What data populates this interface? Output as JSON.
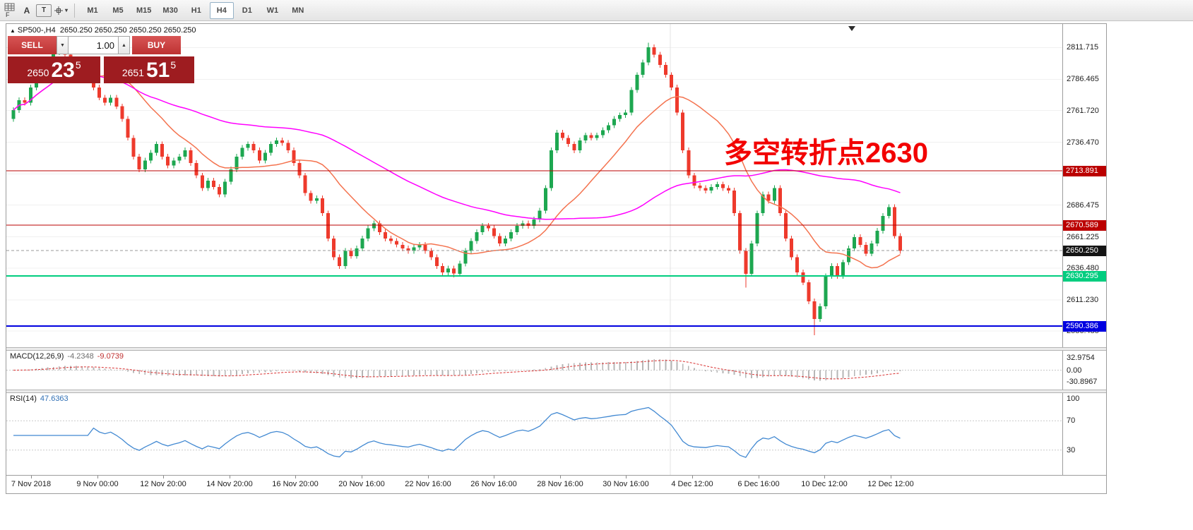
{
  "toolbar": {
    "icon_caption": "F",
    "text_tool": "A",
    "label_tool": "T",
    "timeframes": [
      "M1",
      "M5",
      "M15",
      "M30",
      "H1",
      "H4",
      "D1",
      "W1",
      "MN"
    ],
    "active_timeframe": "H4"
  },
  "header": {
    "symbol": "SP500-,H4",
    "ohlc": "2650.250 2650.250 2650.250 2650.250"
  },
  "trade_panel": {
    "sell": "SELL",
    "buy": "BUY",
    "volume": "1.00",
    "bid": {
      "prefix": "2650",
      "big": "23",
      "pip": "5"
    },
    "ask": {
      "prefix": "2651",
      "big": "51",
      "pip": "5"
    }
  },
  "annotation": {
    "text": "多空转折点2630",
    "color": "#f20000"
  },
  "price_axis": {
    "ticks": [
      "2811.715",
      "2786.465",
      "2761.720",
      "2736.470",
      "2711.225",
      "2686.475",
      "2661.225",
      "2636.480",
      "2611.230",
      "2586.485"
    ]
  },
  "levels": [
    {
      "label": "2713.891",
      "price": 2713.891,
      "line": "#bb0000",
      "width": 1,
      "dashed": false,
      "bg": "#bb0000"
    },
    {
      "label": "2670.589",
      "price": 2670.589,
      "line": "#bb0000",
      "width": 1,
      "dashed": false,
      "bg": "#bb0000"
    },
    {
      "label": "2650.250",
      "price": 2650.25,
      "line": "#9a9a9a",
      "width": 1,
      "dashed": true,
      "bg": "#141414"
    },
    {
      "label": "2630.295",
      "price": 2630.295,
      "line": "#00cd7f",
      "width": 2,
      "dashed": false,
      "bg": "#00cd7f"
    },
    {
      "label": "2590.386",
      "price": 2590.386,
      "line": "#0000e0",
      "width": 2,
      "dashed": false,
      "bg": "#0000e0"
    }
  ],
  "macd": {
    "name": "MACD(12,26,9)",
    "main_value": "-4.2348",
    "signal_value": "-9.0739",
    "axis": [
      "32.9754",
      "0.00",
      "-30.8967"
    ],
    "fast": 12,
    "slow": 26,
    "signal": 9,
    "hist_color": "#b6b6b6",
    "signal_color": "#d93030"
  },
  "rsi": {
    "name": "RSI(14)",
    "value": "47.6363",
    "axis": [
      "100",
      "70",
      "30"
    ],
    "period": 14,
    "levels": [
      70,
      30
    ],
    "color": "#4289d2"
  },
  "time_axis": [
    "7 Nov 2018",
    "9 Nov 00:00",
    "12 Nov 20:00",
    "14 Nov 20:00",
    "16 Nov 20:00",
    "20 Nov 16:00",
    "22 Nov 16:00",
    "26 Nov 16:00",
    "28 Nov 16:00",
    "30 Nov 16:00",
    "4 Dec 12:00",
    "6 Dec 16:00",
    "10 Dec 12:00",
    "12 Dec 12:00"
  ],
  "chart_data": {
    "type": "candlestick",
    "symbol": "SP500-",
    "timeframe": "H4",
    "title": "SP500-,H4",
    "ylim": [
      2573.5,
      2830.5
    ],
    "current_price": 2650.25,
    "first_open": 2755,
    "up_color": "#1da750",
    "down_color": "#ee3a2c",
    "wick": 2.2,
    "closes": [
      2762,
      2770,
      2768,
      2780,
      2790,
      2795,
      2800,
      2808,
      2812,
      2806,
      2798,
      2800,
      2795,
      2788,
      2780,
      2772,
      2768,
      2772,
      2765,
      2755,
      2740,
      2725,
      2715,
      2722,
      2728,
      2735,
      2725,
      2718,
      2722,
      2725,
      2730,
      2720,
      2710,
      2700,
      2706,
      2701,
      2695,
      2705,
      2715,
      2725,
      2732,
      2735,
      2730,
      2722,
      2728,
      2735,
      2738,
      2736,
      2730,
      2720,
      2710,
      2696,
      2690,
      2692,
      2680,
      2660,
      2645,
      2638,
      2650,
      2646,
      2652,
      2660,
      2668,
      2672,
      2665,
      2660,
      2658,
      2655,
      2652,
      2650,
      2653,
      2655,
      2650,
      2645,
      2638,
      2633,
      2636,
      2632,
      2640,
      2650,
      2658,
      2665,
      2670,
      2668,
      2662,
      2656,
      2660,
      2665,
      2670,
      2672,
      2670,
      2675,
      2682,
      2700,
      2730,
      2744,
      2740,
      2735,
      2730,
      2738,
      2742,
      2740,
      2742,
      2746,
      2750,
      2755,
      2758,
      2760,
      2778,
      2790,
      2800,
      2812,
      2806,
      2798,
      2790,
      2780,
      2760,
      2730,
      2710,
      2702,
      2700,
      2698,
      2701,
      2703,
      2700,
      2698,
      2680,
      2650,
      2632,
      2656,
      2680,
      2695,
      2690,
      2700,
      2680,
      2660,
      2645,
      2633,
      2625,
      2610,
      2596,
      2606,
      2630,
      2638,
      2630,
      2641,
      2652,
      2661,
      2655,
      2648,
      2656,
      2666,
      2678,
      2685,
      2662,
      2650
    ],
    "wick_overrides": [
      {
        "i": 8,
        "high": 2815.5
      },
      {
        "i": 111,
        "high": 2815.7
      },
      {
        "i": 77,
        "low": 2629.0
      },
      {
        "i": 128,
        "low": 2621.0
      },
      {
        "i": 140,
        "low": 2583.0
      }
    ],
    "moving_averages": [
      {
        "period": 16,
        "color": "#f4734f"
      },
      {
        "period": 55,
        "color": "#ff00ff"
      }
    ]
  }
}
